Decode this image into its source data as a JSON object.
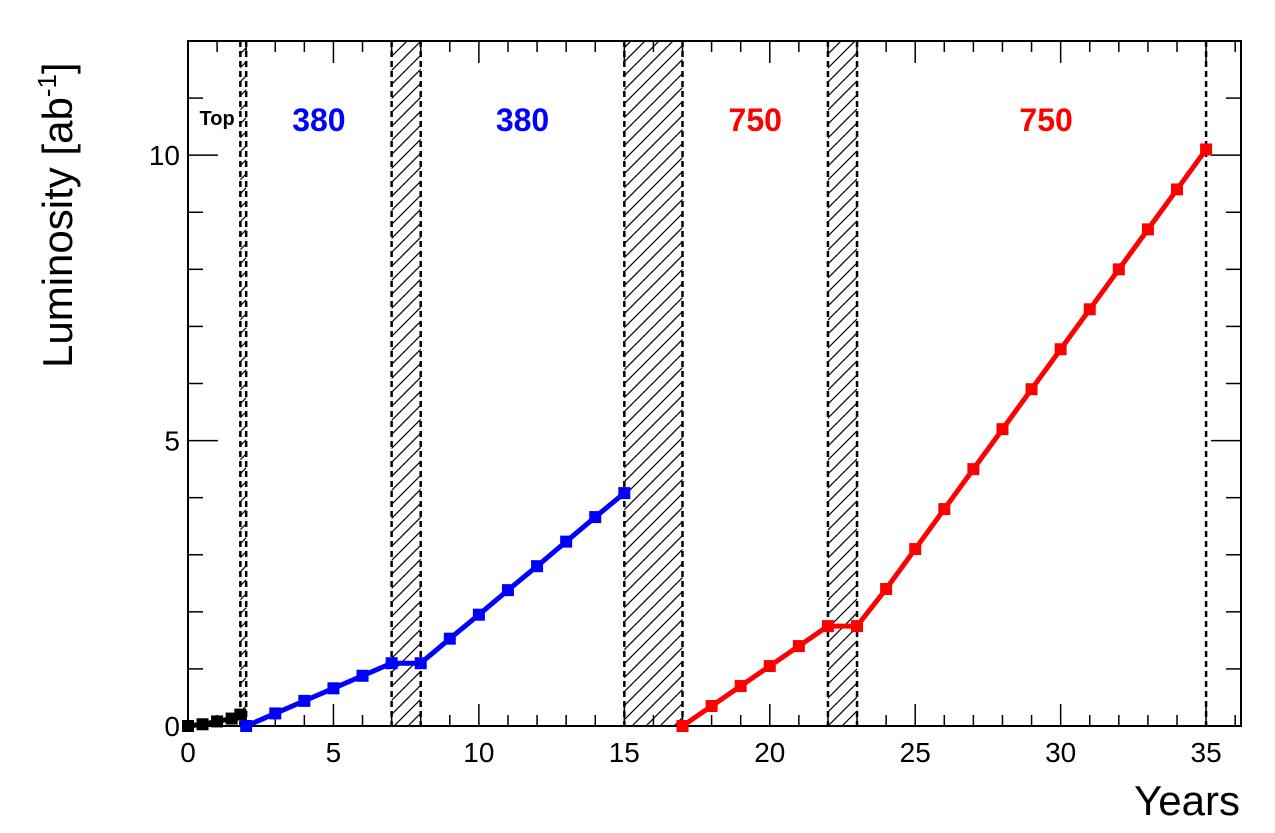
{
  "chart_data": {
    "type": "line",
    "title": "",
    "xlabel": "Years",
    "ylabel_main": "Luminosity [ab",
    "ylabel_exp": "-1",
    "ylabel_close": "]",
    "xlim": [
      0,
      36.2
    ],
    "ylim": [
      0,
      12
    ],
    "x_ticks": [
      0,
      5,
      10,
      15,
      20,
      25,
      30,
      35
    ],
    "y_ticks": [
      0,
      5,
      10
    ],
    "grid": false,
    "series": [
      {
        "color": "#000000",
        "x": [
          0,
          0.5,
          1.0,
          1.5,
          1.8
        ],
        "y": [
          0,
          0.03,
          0.08,
          0.13,
          0.2
        ]
      },
      {
        "color": "#0000ff",
        "x": [
          2,
          3,
          4,
          5,
          6,
          7,
          8,
          9,
          10,
          11,
          12,
          13,
          14,
          15
        ],
        "y": [
          0,
          0.22,
          0.44,
          0.66,
          0.88,
          1.1,
          1.1,
          1.53,
          1.95,
          2.38,
          2.8,
          3.23,
          3.66,
          4.08
        ]
      },
      {
        "color": "#ff0000",
        "x": [
          17,
          18,
          19,
          20,
          21,
          22,
          23,
          24,
          25,
          26,
          27,
          28,
          29,
          30,
          31,
          32,
          33,
          34,
          35
        ],
        "y": [
          0,
          0.35,
          0.7,
          1.05,
          1.4,
          1.75,
          1.75,
          2.4,
          3.1,
          3.8,
          4.5,
          5.2,
          5.9,
          6.6,
          7.3,
          8.0,
          8.7,
          9.4,
          10.1
        ]
      }
    ],
    "shaded_bands": [
      {
        "x_start": 1.8,
        "x_end": 2.0
      },
      {
        "x_start": 7,
        "x_end": 8
      },
      {
        "x_start": 15,
        "x_end": 17
      },
      {
        "x_start": 22,
        "x_end": 23
      }
    ],
    "vertical_lines": [
      35
    ],
    "annotations": [
      {
        "text": "Top",
        "x": 1.0,
        "y": 10.7,
        "color": "#000000",
        "size": "small"
      },
      {
        "text": "380",
        "x": 4.5,
        "y": 10.7,
        "color": "#0000ff",
        "size": "large"
      },
      {
        "text": "380",
        "x": 11.5,
        "y": 10.7,
        "color": "#0000ff",
        "size": "large"
      },
      {
        "text": "750",
        "x": 19.5,
        "y": 10.7,
        "color": "#ff0000",
        "size": "large"
      },
      {
        "text": "750",
        "x": 29.5,
        "y": 10.7,
        "color": "#ff0000",
        "size": "large"
      }
    ]
  }
}
